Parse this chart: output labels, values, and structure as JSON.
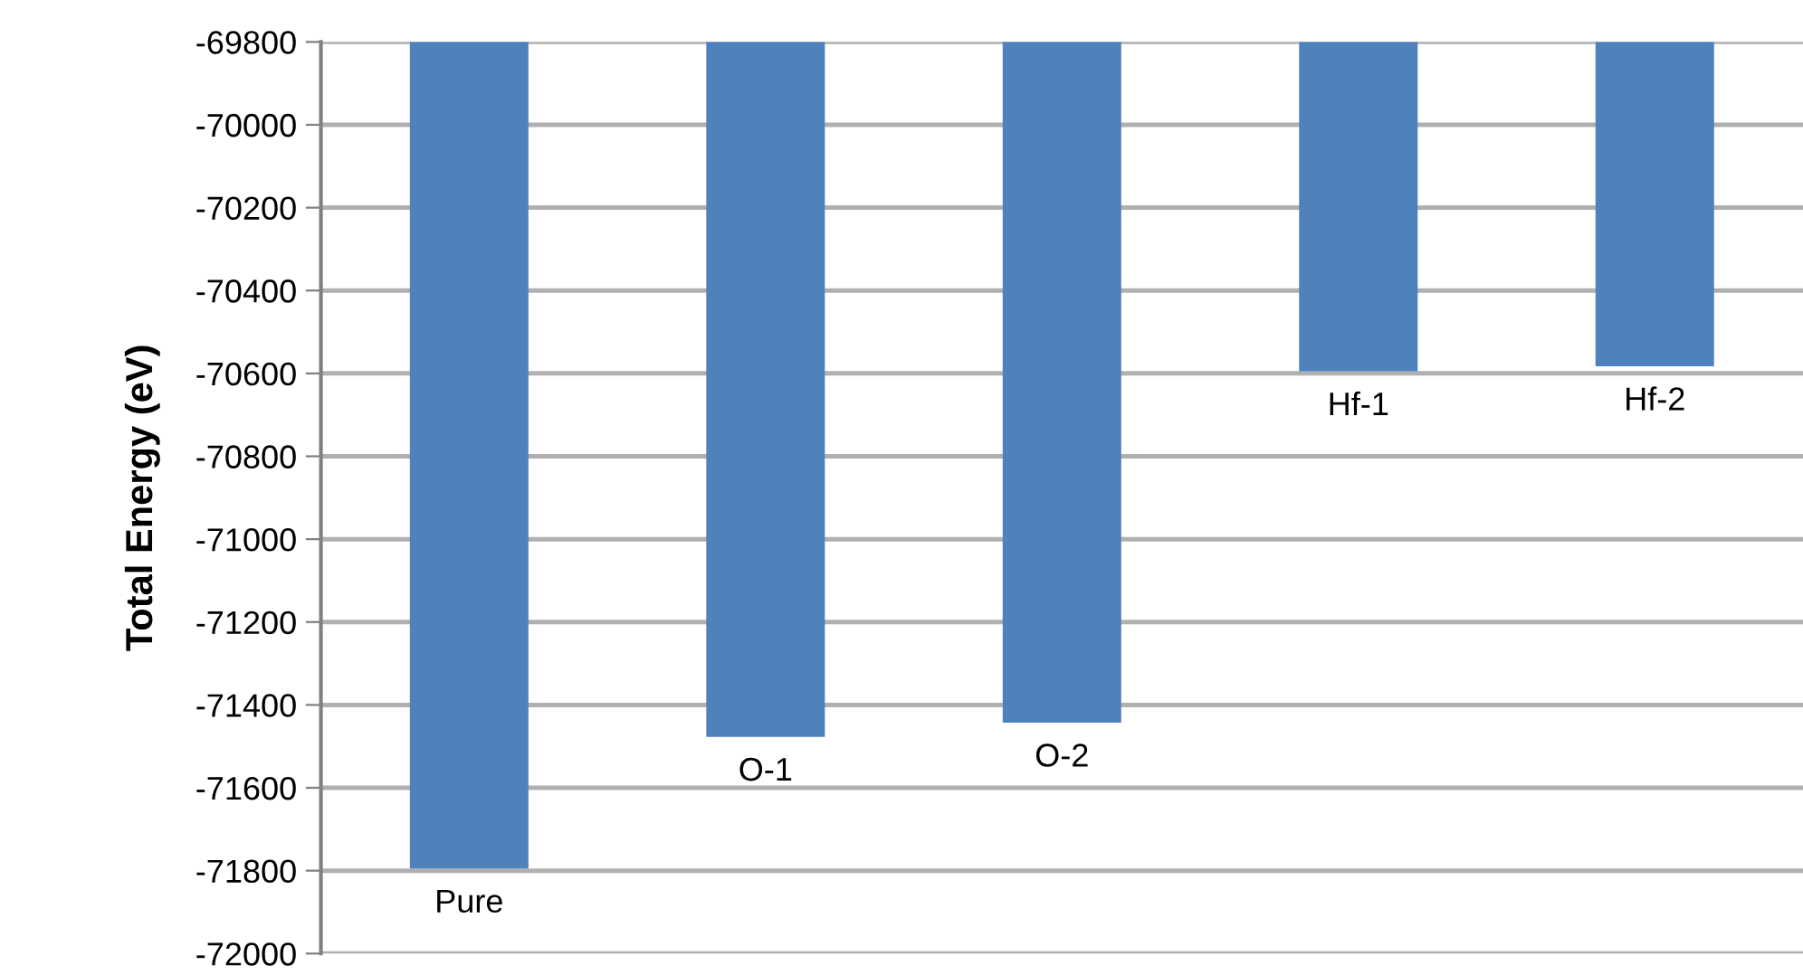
{
  "chart_data": {
    "type": "bar",
    "ylabel": "Total Energy (eV)",
    "categories": [
      "Pure",
      "O-1",
      "O-2",
      "Hf-1",
      "Hf-2"
    ],
    "values": [
      -71795,
      -71477,
      -71443,
      -70595,
      -70583
    ],
    "color": "#4f81bd",
    "ylim": [
      -72000,
      -69800
    ],
    "yticks": [
      -72000,
      -71800,
      -71600,
      -71400,
      -71200,
      -71000,
      -70800,
      -70600,
      -70400,
      -70200,
      -70000,
      -69800
    ],
    "grid": "y"
  }
}
